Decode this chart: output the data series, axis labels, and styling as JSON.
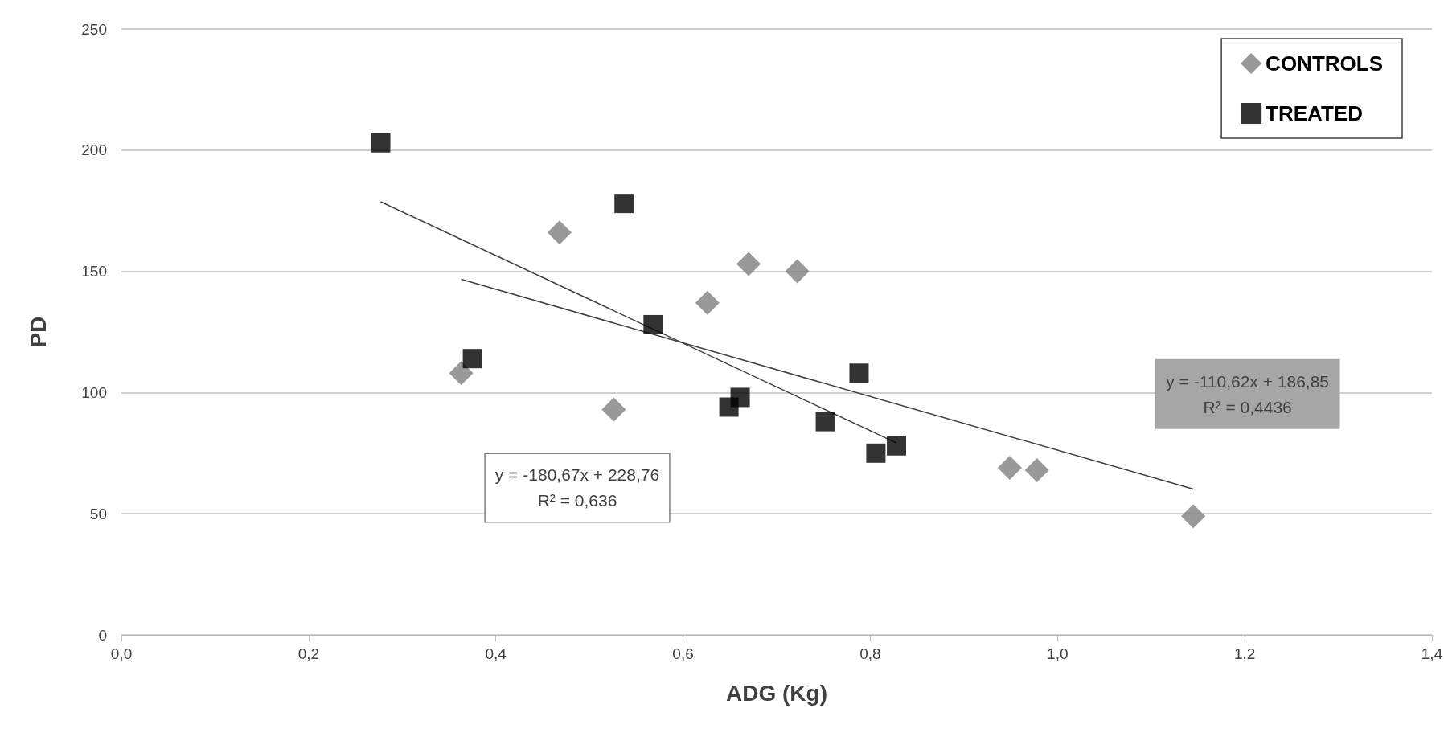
{
  "chart_data": {
    "type": "scatter",
    "xlabel": "ADG (Kg)",
    "ylabel": "PD",
    "xlim": [
      0,
      1.4
    ],
    "xticks": [
      {
        "value": 0,
        "label": "0,0"
      },
      {
        "value": 0.2,
        "label": "0,2"
      },
      {
        "value": 0.4,
        "label": "0,4"
      },
      {
        "value": 0.6,
        "label": "0,6"
      },
      {
        "value": 0.8,
        "label": "0,8"
      },
      {
        "value": 1.0,
        "label": "1,0"
      },
      {
        "value": 1.2,
        "label": "1,2"
      },
      {
        "value": 1.4,
        "label": "1,4"
      }
    ],
    "ylim": [
      0,
      250
    ],
    "yticks": [
      0,
      50,
      100,
      150,
      200,
      250
    ],
    "grid": "y",
    "legend": "top right",
    "annotations": [
      "y = -180,67x + 228,76\nR² = 0,636",
      "y = -110,62x + 186,85\nR² = 0,4436"
    ],
    "series": [
      {
        "name": "CONTROLS",
        "color": "#808080",
        "marker": "diamond",
        "x": [
          0.468,
          0.67,
          0.722,
          0.626,
          0.363,
          0.526,
          0.645,
          0.949,
          0.978,
          1.145
        ],
        "values": [
          166,
          153,
          150,
          137,
          108,
          93,
          null,
          69,
          68,
          49
        ]
      },
      {
        "name": "TREATED",
        "color": "#000000",
        "marker": "square",
        "x": [
          0.277,
          0.537,
          0.568,
          0.375,
          0.788,
          0.661,
          0.649,
          0.752,
          0.828,
          0.806
        ],
        "values": [
          203,
          178,
          128,
          114,
          108,
          98,
          94,
          88,
          78,
          75
        ]
      },
      {
        "type": "line",
        "color": "#404040",
        "marker": "none",
        "x": [
          0.277,
          0.828
        ],
        "values": [
          178.7,
          79.2
        ]
      },
      {
        "type": "line",
        "color": "#404040",
        "marker": "none",
        "x": [
          0.363,
          1.145
        ],
        "values": [
          146.7,
          60.2
        ]
      }
    ]
  }
}
